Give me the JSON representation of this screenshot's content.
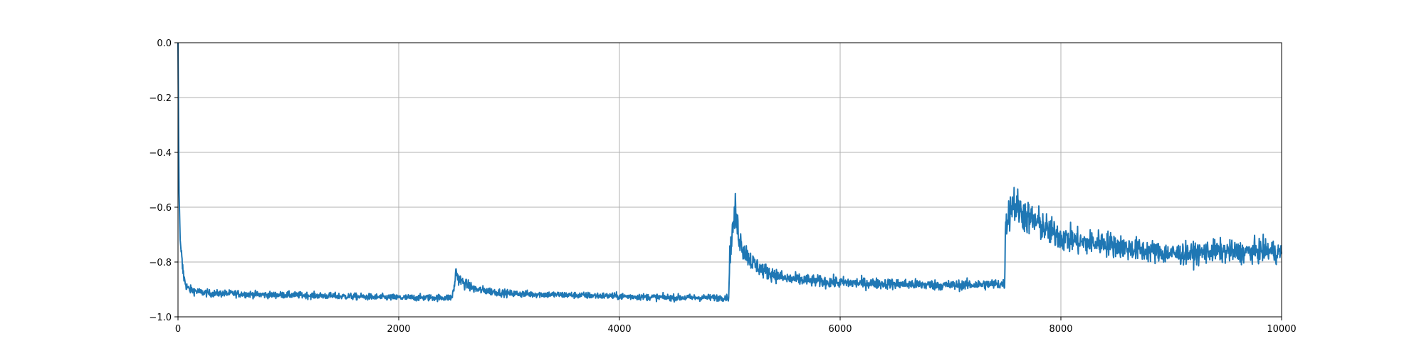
{
  "chart_data": {
    "type": "line",
    "title": "",
    "xlabel": "",
    "ylabel": "",
    "xlim": [
      0,
      10000
    ],
    "ylim": [
      -1.0,
      0.0
    ],
    "grid": true,
    "legend": "none",
    "x_ticks": [
      {
        "value": 0,
        "label": "0"
      },
      {
        "value": 2000,
        "label": "2000"
      },
      {
        "value": 4000,
        "label": "4000"
      },
      {
        "value": 6000,
        "label": "6000"
      },
      {
        "value": 8000,
        "label": "8000"
      },
      {
        "value": 10000,
        "label": "10000"
      }
    ],
    "y_ticks": [
      {
        "value": 0.0,
        "label": "0.0"
      },
      {
        "value": -0.2,
        "label": "−0.2"
      },
      {
        "value": -0.4,
        "label": "−0.4"
      },
      {
        "value": -0.6,
        "label": "−0.6"
      },
      {
        "value": -0.8,
        "label": "−0.8"
      },
      {
        "value": -1.0,
        "label": "−1.0"
      }
    ],
    "series": [
      {
        "color": "#1f77b4",
        "x": [
          0,
          5,
          10,
          20,
          40,
          60,
          80,
          100,
          150,
          200,
          300,
          500,
          800,
          1000,
          1500,
          2000,
          2300,
          2480,
          2500,
          2520,
          2540,
          2600,
          2700,
          3000,
          3500,
          4000,
          4500,
          4990,
          5000,
          5020,
          5050,
          5080,
          5120,
          5200,
          5300,
          5500,
          5800,
          6000,
          6500,
          7000,
          7490,
          7500,
          7530,
          7570,
          7600,
          7650,
          7700,
          7800,
          7900,
          7980,
          8000,
          8100,
          8200,
          8400,
          8600,
          8800,
          9000,
          9200,
          9400,
          9600,
          9800,
          9900,
          10000
        ],
        "y": [
          0.0,
          -0.3,
          -0.55,
          -0.72,
          -0.82,
          -0.87,
          -0.89,
          -0.9,
          -0.905,
          -0.91,
          -0.915,
          -0.915,
          -0.92,
          -0.92,
          -0.925,
          -0.93,
          -0.93,
          -0.93,
          -0.9,
          -0.83,
          -0.86,
          -0.88,
          -0.9,
          -0.915,
          -0.92,
          -0.925,
          -0.93,
          -0.93,
          -0.78,
          -0.7,
          -0.62,
          -0.7,
          -0.75,
          -0.8,
          -0.83,
          -0.86,
          -0.87,
          -0.875,
          -0.88,
          -0.885,
          -0.88,
          -0.66,
          -0.62,
          -0.58,
          -0.6,
          -0.62,
          -0.64,
          -0.66,
          -0.69,
          -0.7,
          -0.71,
          -0.72,
          -0.73,
          -0.73,
          -0.75,
          -0.76,
          -0.77,
          -0.77,
          -0.76,
          -0.765,
          -0.76,
          -0.76,
          -0.77
        ]
      }
    ]
  }
}
